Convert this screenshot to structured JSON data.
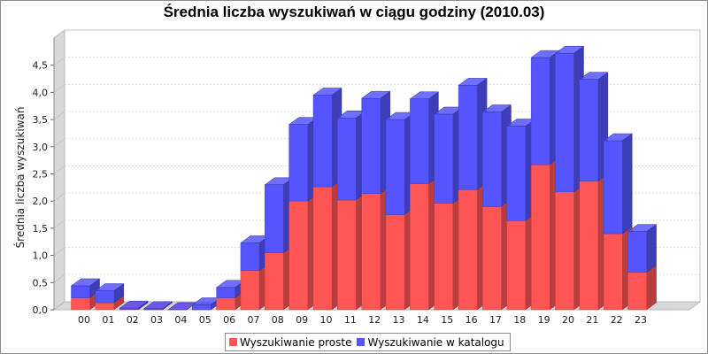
{
  "chart_data": {
    "type": "bar",
    "stacked": true,
    "three_d": true,
    "title": "Średnia liczba wyszukiwań w ciągu godziny (2010.03)",
    "xlabel": "",
    "ylabel": "Średnia liczba wyszukiwań",
    "categories": [
      "00",
      "01",
      "02",
      "03",
      "04",
      "05",
      "06",
      "07",
      "08",
      "09",
      "10",
      "11",
      "12",
      "13",
      "14",
      "15",
      "16",
      "17",
      "18",
      "19",
      "20",
      "21",
      "22",
      "23"
    ],
    "ylim": [
      0,
      5
    ],
    "yticks": [
      "0,0",
      "0,5",
      "1,0",
      "1,5",
      "2,0",
      "2,5",
      "3,0",
      "3,5",
      "4,0",
      "4,5"
    ],
    "grid": true,
    "legend_position": "bottom",
    "series": [
      {
        "name": "Wyszukiwanie proste",
        "color": "#ff5555",
        "values": [
          0.22,
          0.13,
          0.01,
          0.0,
          0.0,
          0.0,
          0.22,
          0.72,
          1.05,
          2.0,
          2.26,
          2.02,
          2.14,
          1.75,
          2.32,
          1.96,
          2.21,
          1.9,
          1.64,
          2.67,
          2.17,
          2.37,
          1.4,
          0.69
        ]
      },
      {
        "name": "Wyszukiwanie w katalogu",
        "color": "#5555ff",
        "values": [
          0.22,
          0.22,
          0.02,
          0.02,
          0.0,
          0.09,
          0.19,
          0.51,
          1.25,
          1.41,
          1.69,
          1.51,
          1.75,
          1.75,
          1.56,
          1.64,
          1.92,
          1.74,
          1.74,
          1.97,
          2.55,
          1.87,
          1.71,
          0.75
        ]
      }
    ]
  }
}
